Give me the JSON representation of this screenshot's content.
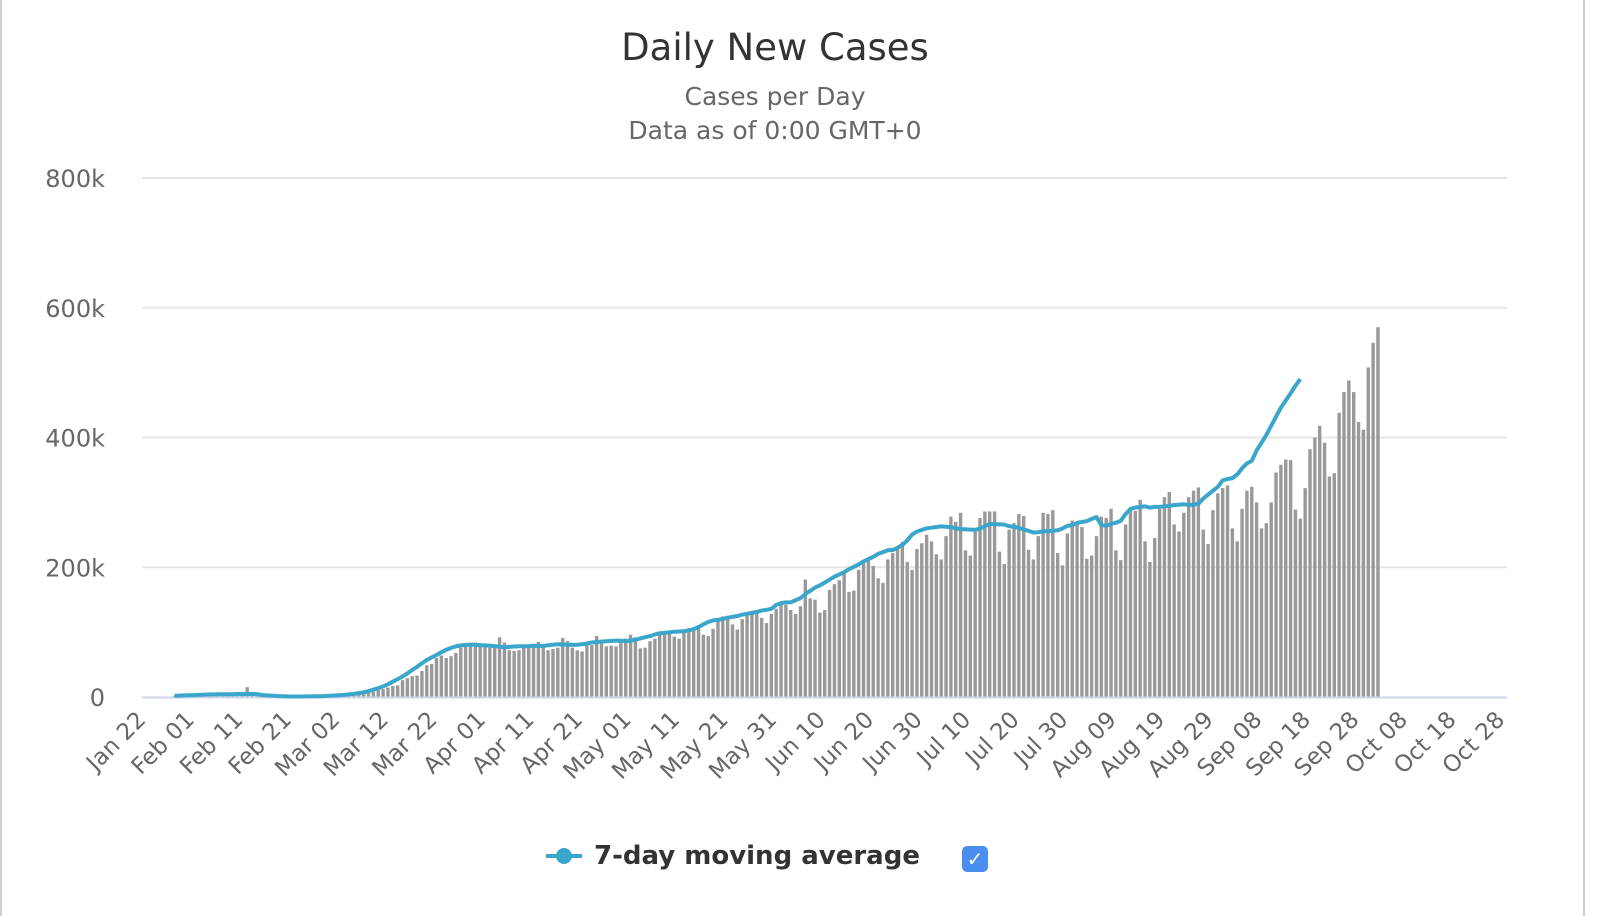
{
  "chart_data": {
    "type": "bar",
    "title": "Daily New Cases",
    "subtitle": "Cases per Day",
    "subtitle2": "Data as of 0:00 GMT+0",
    "xlabel": "",
    "ylabel": "",
    "ylim": [
      0,
      800000
    ],
    "yticks": [
      0,
      200000,
      400000,
      600000,
      800000
    ],
    "ytick_labels": [
      "0",
      "200k",
      "400k",
      "600k",
      "800k"
    ],
    "xtick_labels": [
      "Jan 22",
      "Feb 01",
      "Feb 11",
      "Feb 21",
      "Mar 02",
      "Mar 12",
      "Mar 22",
      "Apr 01",
      "Apr 11",
      "Apr 21",
      "May 01",
      "May 11",
      "May 21",
      "May 31",
      "Jun 10",
      "Jun 20",
      "Jun 30",
      "Jul 10",
      "Jul 20",
      "Jul 30",
      "Aug 09",
      "Aug 19",
      "Aug 29",
      "Sep 08",
      "Sep 18",
      "Sep 28",
      "Oct 08",
      "Oct 18",
      "Oct 28"
    ],
    "xtick_interval_days": 10,
    "start_date": "Jan 22",
    "grid": true,
    "legend_position": "bottom-center",
    "colors": {
      "bars": "#999999",
      "line": "#3ba6cb",
      "grid": "#e6e6e6",
      "axis": "#ccd6eb",
      "checkbox": "#4a8ef0"
    },
    "series": [
      {
        "name": "Daily New Cases",
        "kind": "bar",
        "unit": "thousand cases",
        "values": []
      },
      {
        "name": "7-day moving average",
        "kind": "line",
        "unit": "thousand cases",
        "values": []
      }
    ],
    "daily_k": [
      0.6,
      0.3,
      0.3,
      0.6,
      0.7,
      0.8,
      1.8,
      1.5,
      2.0,
      1.7,
      2.1,
      2.6,
      2.8,
      3.2,
      3.9,
      3.7,
      3.2,
      3.4,
      2.7,
      2.6,
      2.1,
      15.1,
      6.4,
      2.1,
      2.0,
      1.9,
      1.8,
      1.0,
      0.6,
      0.9,
      0.5,
      0.6,
      0.6,
      0.8,
      0.9,
      0.8,
      1.2,
      1.4,
      1.8,
      2.0,
      2.4,
      2.7,
      3.7,
      4.0,
      4.0,
      4.7,
      7.3,
      7.8,
      10.6,
      12.4,
      14.6,
      17.0,
      18.0,
      26.0,
      29.0,
      32.0,
      33.0,
      40.0,
      49.0,
      51.0,
      60.0,
      64.0,
      60.0,
      63.0,
      68.0,
      76.0,
      79.0,
      81.0,
      84.0,
      83.0,
      77.0,
      76.0,
      77.0,
      92.0,
      84.0,
      72.0,
      71.0,
      72.0,
      79.0,
      78.0,
      80.0,
      85.0,
      78.0,
      72.0,
      74.0,
      76.0,
      91.0,
      86.0,
      76.0,
      72.0,
      70.0,
      80.0,
      80.0,
      94.0,
      86.0,
      78.0,
      79.0,
      78.0,
      87.0,
      90.0,
      96.0,
      92.0,
      75.0,
      76.0,
      86.0,
      90.0,
      96.0,
      102.0,
      100.0,
      93.0,
      90.0,
      100.0,
      106.0,
      106.0,
      105.0,
      96.0,
      94.0,
      105.0,
      118.0,
      124.0,
      125.0,
      112.0,
      104.0,
      120.0,
      129.0,
      130.0,
      130.0,
      122.0,
      114.0,
      128.0,
      136.0,
      142.0,
      142.0,
      134.0,
      128.0,
      140.0,
      181.0,
      152.0,
      150.0,
      130.0,
      134.0,
      165.0,
      174.0,
      180.0,
      190.0,
      162.0,
      164.0,
      196.0,
      208.0,
      212.0,
      202.0,
      183.0,
      176.0,
      212.0,
      222.0,
      228.0,
      239.0,
      208.0,
      196.0,
      228.0,
      237.0,
      250.0,
      240.0,
      220.0,
      212.0,
      248.0,
      278.0,
      270.0,
      284.0,
      226.0,
      218.0,
      255.0,
      276.0,
      286.0,
      286.0,
      286.0,
      224.0,
      205.0,
      258.0,
      268.0,
      282.0,
      279.0,
      227.0,
      212.0,
      248.0,
      284.0,
      282.0,
      288.0,
      222.0,
      203.0,
      252.0,
      272.0,
      268.0,
      262.0,
      213.0,
      218.0,
      248.0,
      278.0,
      276.0,
      290.0,
      226.0,
      211.0,
      266.0,
      287.0,
      287.0,
      304.0,
      240.0,
      208.0,
      245.0,
      290.0,
      308.0,
      316.0,
      266.0,
      255.0,
      284.0,
      308.0,
      318.0,
      323.0,
      258.0,
      236.0,
      288.0,
      314.0,
      322.0,
      326.0,
      260.0,
      240.0,
      290.0,
      318.0,
      324.0,
      300.0,
      260.0,
      268.0,
      300.0,
      346.0,
      358.0,
      366.0,
      365.0,
      289.0,
      275.0,
      322.0,
      382.0,
      400.0,
      418.0,
      392.0,
      340.0,
      345.0,
      438.0,
      470.0,
      488.0,
      470.0,
      424.0,
      412.0,
      508.0,
      546.0,
      570.0
    ],
    "ma_start_day": 6,
    "ma_k": [
      2.0,
      2.2,
      2.4,
      2.7,
      3.0,
      3.3,
      3.6,
      3.8,
      4.0,
      4.1,
      4.1,
      4.2,
      4.2,
      4.6,
      4.8,
      4.7,
      4.6,
      4.4,
      3.1,
      2.4,
      2.1,
      1.7,
      1.3,
      1.0,
      0.8,
      0.8,
      0.8,
      0.9,
      1.0,
      1.1,
      1.3,
      1.6,
      1.9,
      2.3,
      2.8,
      3.3,
      4.0,
      4.9,
      6.0,
      7.3,
      9.1,
      11.2,
      13.5,
      16.4,
      19.6,
      23.6,
      27.6,
      31.6,
      36.4,
      41.6,
      46.6,
      52.0,
      57.0,
      61.0,
      64.8,
      69.0,
      72.7,
      75.7,
      78.0,
      79.4,
      80.3,
      80.8,
      80.4,
      79.8,
      79.6,
      79.0,
      78.5,
      77.6,
      76.8,
      77.2,
      77.9,
      78.2,
      78.3,
      78.4,
      79.0,
      78.7,
      78.6,
      79.8,
      80.6,
      81.2,
      80.8,
      80.4,
      80.3,
      80.6,
      81.2,
      82.4,
      84.0,
      84.8,
      85.4,
      85.8,
      86.4,
      87.0,
      86.6,
      86.2,
      86.9,
      88.3,
      90.3,
      92.2,
      93.9,
      96.3,
      98.4,
      98.8,
      99.8,
      100.6,
      101.0,
      101.5,
      102.6,
      104.6,
      107.8,
      112.0,
      115.6,
      118.0,
      118.8,
      120.5,
      122.2,
      123.4,
      124.8,
      126.8,
      128.3,
      129.6,
      131.1,
      133.2,
      134.4,
      135.9,
      142.0,
      144.6,
      145.8,
      146.0,
      149.2,
      152.4,
      158.6,
      163.6,
      168.6,
      172.0,
      176.4,
      181.0,
      185.4,
      189.0,
      192.3,
      197.0,
      200.7,
      204.4,
      209.0,
      212.6,
      216.1,
      220.6,
      223.3,
      226.1,
      226.6,
      230.0,
      234.4,
      241.4,
      250.4,
      255.0,
      257.6,
      260.0,
      260.9,
      262.0,
      263.0,
      262.4,
      261.7,
      260.3,
      258.5,
      258.5,
      258.0,
      257.8,
      259.6,
      263.4,
      266.8,
      266.2,
      266.4,
      265.7,
      263.2,
      262.2,
      260.8,
      258.3,
      256.1,
      253.6,
      254.0,
      255.2,
      255.7,
      256.2,
      257.0,
      259.8,
      263.8,
      265.0,
      268.3,
      269.8,
      271.2,
      274.4,
      277.3,
      265.0,
      264.0,
      266.7,
      268.6,
      271.6,
      282.0,
      290.0,
      292.0,
      293.0,
      294.0,
      292.0,
      293.0,
      293.0,
      294.0,
      294.6,
      296.0,
      296.4,
      297.0,
      296.0,
      296.4,
      298.0,
      306.0,
      312.0,
      318.0,
      324.0,
      334.0,
      336.0,
      337.4,
      343.0,
      352.6,
      360.0,
      364.0,
      380.0,
      392.0,
      404.0,
      418.0,
      432.0,
      446.0,
      457.0,
      468.0,
      480.0,
      490.0
    ]
  },
  "legend": {
    "label": "7-day moving average",
    "checkbox_checked": true,
    "checkbox_glyph": "✓"
  }
}
